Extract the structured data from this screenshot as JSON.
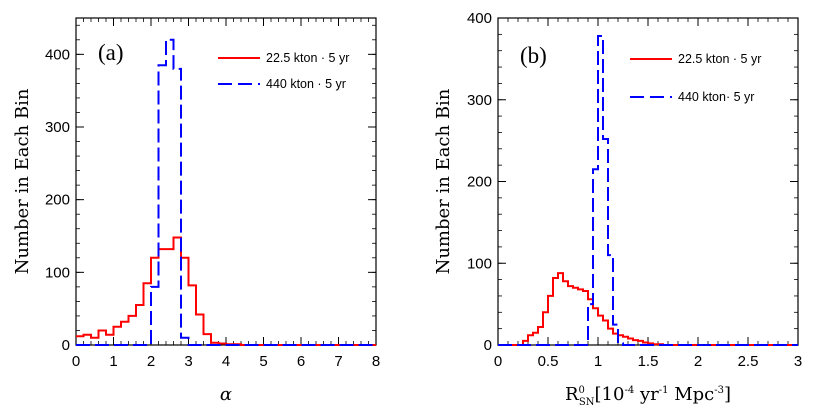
{
  "chart_data": [
    {
      "type": "histogram",
      "panel_label": "(a)",
      "xlabel": "α",
      "ylabel": "Number in Each Bin",
      "xlim": [
        0,
        8
      ],
      "ylim": [
        0,
        450
      ],
      "xticks": [
        0,
        1,
        2,
        3,
        4,
        5,
        6,
        7,
        8
      ],
      "yticks": [
        0,
        100,
        200,
        300,
        400
      ],
      "legend_position": "top-right",
      "series": [
        {
          "name": "22.5 kton · 5 yr",
          "color": "#ff0000",
          "dash": "solid",
          "bin_width": 0.2,
          "bins_start": 0,
          "values": [
            12,
            14,
            10,
            20,
            14,
            25,
            32,
            40,
            55,
            85,
            120,
            132,
            132,
            148,
            120,
            82,
            42,
            15,
            3,
            2,
            1,
            1,
            0,
            0,
            0,
            0,
            0,
            0,
            0,
            0,
            0,
            0,
            0,
            0,
            0,
            0,
            0,
            0,
            0,
            0
          ]
        },
        {
          "name": "440 kton · 5 yr",
          "color": "#0000ff",
          "dash": "dashed",
          "bin_width": 0.2,
          "bins_start": 0,
          "values": [
            0,
            0,
            0,
            0,
            0,
            0,
            0,
            0,
            0,
            0,
            80,
            385,
            420,
            380,
            10,
            0,
            0,
            0,
            0,
            0,
            0,
            0,
            0,
            0,
            0,
            0,
            0,
            0,
            0,
            0,
            0,
            0,
            0,
            0,
            0,
            0,
            0,
            0,
            0,
            0
          ]
        }
      ]
    },
    {
      "type": "histogram",
      "panel_label": "(b)",
      "xlabel_main": "R",
      "xlabel_sup": "0",
      "xlabel_sub": "SN",
      "xlabel_bracket_open": "[10",
      "xlabel_exp1": "-4",
      "xlabel_mid": " yr",
      "xlabel_exp2": "-1",
      "xlabel_tail": " Mpc",
      "xlabel_exp3": "-3",
      "xlabel_bracket_close": "]",
      "ylabel": "Number in Each Bin",
      "xlim": [
        0,
        3
      ],
      "ylim": [
        0,
        400
      ],
      "xticks": [
        0,
        0.5,
        1,
        1.5,
        2,
        2.5,
        3
      ],
      "xtick_labels": [
        "0",
        "0.5",
        "1",
        "1.5",
        "2",
        "2.5",
        "3"
      ],
      "yticks": [
        0,
        100,
        200,
        300,
        400
      ],
      "legend_position": "top-right",
      "series": [
        {
          "name": "22.5 kton · 5 yr",
          "color": "#ff0000",
          "dash": "solid",
          "bin_width": 0.05,
          "bins_start": 0,
          "values": [
            0,
            0,
            0,
            0,
            0,
            5,
            12,
            15,
            22,
            40,
            60,
            82,
            88,
            78,
            72,
            70,
            68,
            66,
            56,
            45,
            36,
            30,
            20,
            14,
            12,
            10,
            8,
            6,
            5,
            3,
            2,
            1,
            1,
            0,
            0,
            0,
            0,
            0,
            0,
            0,
            0,
            0,
            0,
            0,
            0,
            0,
            0,
            0,
            0,
            0,
            0,
            0,
            0,
            0,
            0,
            0,
            0,
            0,
            0,
            0
          ]
        },
        {
          "name": "440 kton· 5 yr",
          "color": "#0000ff",
          "dash": "dashed",
          "bin_width": 0.05,
          "bins_start": 0,
          "values": [
            0,
            0,
            0,
            0,
            0,
            0,
            0,
            0,
            0,
            0,
            0,
            0,
            0,
            0,
            0,
            0,
            0,
            0,
            50,
            215,
            378,
            252,
            110,
            25,
            2,
            0,
            0,
            0,
            0,
            0,
            0,
            0,
            0,
            0,
            0,
            0,
            0,
            0,
            0,
            0,
            0,
            0,
            0,
            0,
            0,
            0,
            0,
            0,
            0,
            0,
            0,
            0,
            0,
            0,
            0,
            0,
            0,
            0,
            0,
            0
          ]
        }
      ]
    }
  ]
}
